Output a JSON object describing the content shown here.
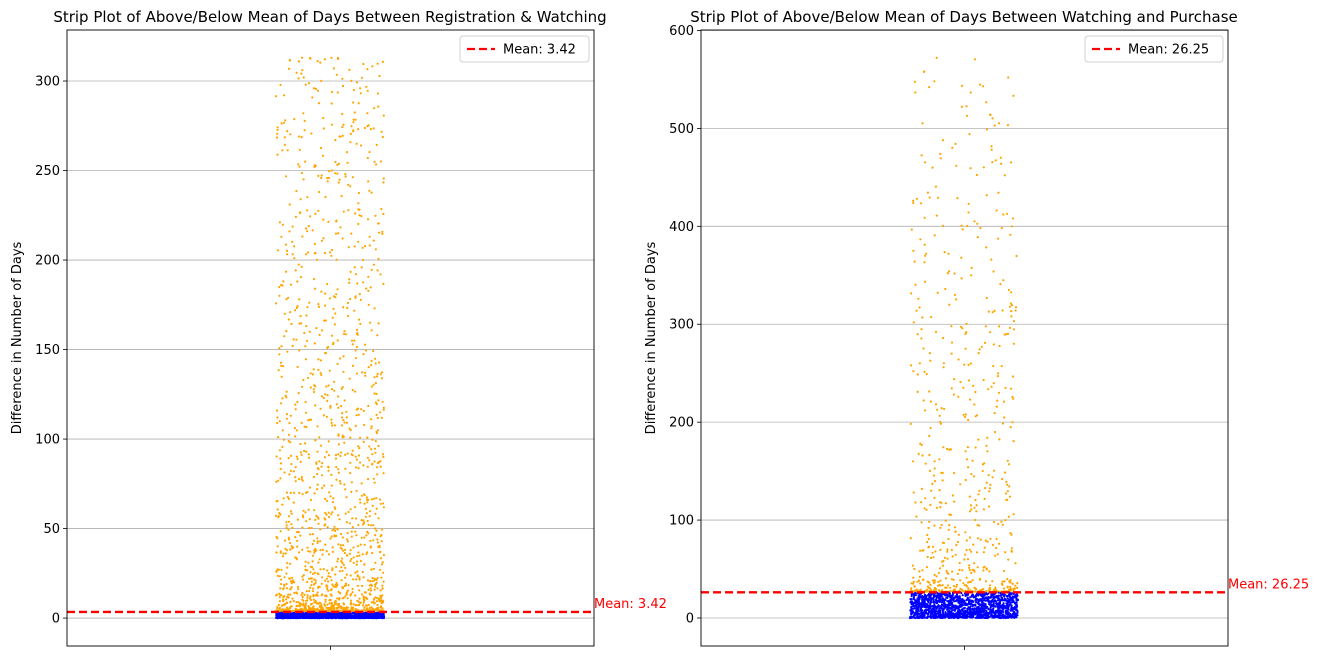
{
  "chart_data": [
    {
      "type": "scatter",
      "title": "Strip Plot of Above/Below Mean of Days Between Registration & Watching",
      "xlabel": "",
      "ylabel": "Difference in Number of Days",
      "ylim": [
        -15.6,
        328.5
      ],
      "yticks": [
        0,
        50,
        100,
        150,
        200,
        250,
        300
      ],
      "ytick_labels": [
        "0",
        "50",
        "100",
        "150",
        "200",
        "250",
        "300"
      ],
      "grid": "y-major",
      "legend": "top-right",
      "mean": 3.42,
      "mean_label": "Mean: 3.42",
      "annotation": "Mean: 3.42",
      "colors": {
        "above": "#ffa500",
        "below": "#0000ff",
        "mean": "#ff0000"
      },
      "series": [
        {
          "group": "above_mean",
          "y_range": [
            4,
            313
          ],
          "y_samples": [
            313,
            298,
            296,
            292,
            288,
            282,
            278,
            277,
            272,
            269,
            264,
            255,
            253,
            252,
            250,
            248,
            247,
            244,
            242,
            238,
            231,
            226,
            225,
            221,
            219,
            216,
            215,
            213,
            209,
            206,
            200,
            196,
            192,
            186,
            184,
            181,
            180,
            178,
            175,
            172,
            169,
            165,
            161,
            158,
            155,
            152,
            148,
            145,
            142,
            137,
            133,
            129,
            125,
            120,
            117,
            113,
            110,
            105,
            101,
            97,
            93,
            90,
            86,
            82,
            78,
            74,
            70,
            66,
            62,
            58,
            55,
            51,
            48,
            45,
            42,
            39,
            36,
            33,
            30,
            27,
            24,
            21,
            18,
            15,
            12,
            10,
            8,
            6,
            5,
            4
          ]
        },
        {
          "group": "below_mean",
          "y_range": [
            0,
            3
          ]
        }
      ]
    },
    {
      "type": "scatter",
      "title": "Strip Plot of Above/Below Mean of Days Between Watching and Purchase",
      "xlabel": "",
      "ylabel": "Difference in Number of Days",
      "ylim": [
        -28.6,
        600.5
      ],
      "yticks": [
        0,
        100,
        200,
        300,
        400,
        500,
        600
      ],
      "ytick_labels": [
        "0",
        "100",
        "200",
        "300",
        "400",
        "500",
        "600"
      ],
      "grid": "y-major",
      "legend": "top-right",
      "mean": 26.25,
      "mean_label": "Mean: 26.25",
      "annotation": "Mean: 26.25",
      "colors": {
        "above": "#ffa500",
        "below": "#0000ff",
        "mean": "#ff0000"
      },
      "series": [
        {
          "group": "above_mean",
          "y_range": [
            27,
            572
          ],
          "y_samples": [
            572,
            552,
            543,
            514,
            499,
            488,
            464,
            460,
            429,
            411,
            408,
            405,
            400,
            397,
            389,
            375,
            372,
            366,
            364,
            354,
            350,
            345,
            341,
            336,
            330,
            326,
            320,
            314,
            308,
            302,
            298,
            292,
            286,
            280,
            275,
            270,
            264,
            258,
            252,
            247,
            241,
            235,
            230,
            224,
            218,
            212,
            206,
            200,
            195,
            190,
            184,
            178,
            172,
            166,
            160,
            154,
            148,
            142,
            136,
            130,
            124,
            118,
            112,
            106,
            100,
            95,
            90,
            85,
            80,
            75,
            70,
            65,
            60,
            56,
            52,
            48,
            45,
            42,
            39,
            36,
            33,
            31,
            29,
            28,
            27
          ]
        },
        {
          "group": "below_mean",
          "y_range": [
            0,
            26
          ]
        }
      ]
    }
  ],
  "panel_names": [
    "left-panel",
    "right-panel"
  ]
}
